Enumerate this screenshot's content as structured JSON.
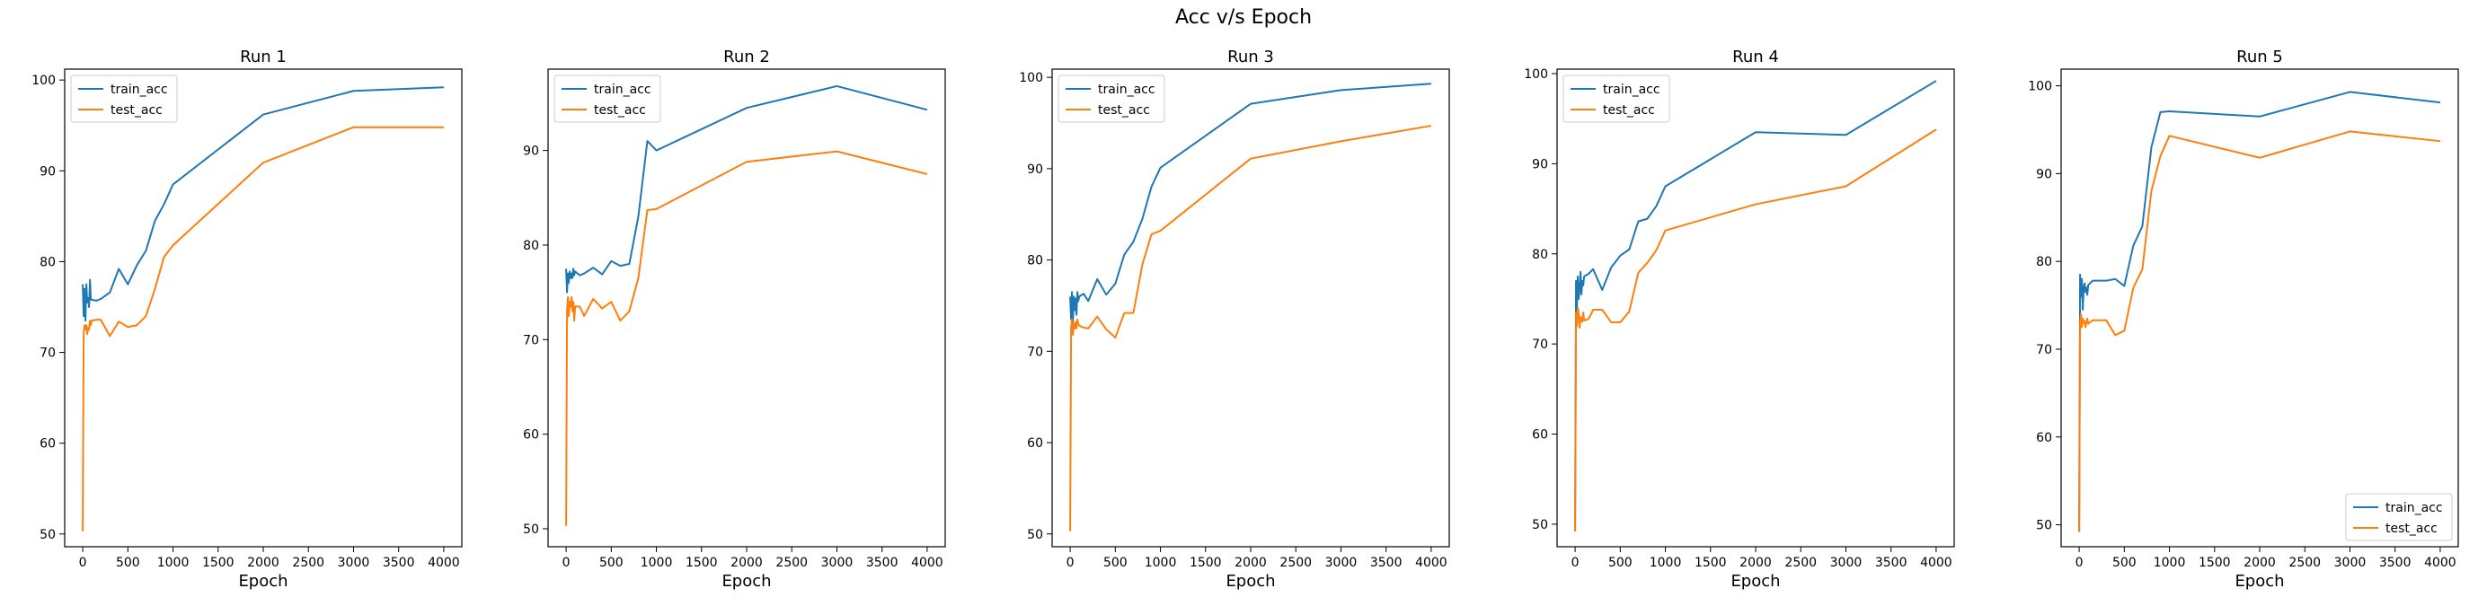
{
  "figure_title": "Acc v/s Epoch",
  "colors": {
    "train": "#1f77b4",
    "test": "#ff7f0e"
  },
  "chart_data": [
    {
      "type": "line",
      "title": "Run 1",
      "xlabel": "Epoch",
      "ylabel": "",
      "xlim": [
        -200,
        4200
      ],
      "ylim": [
        48.6,
        101.2
      ],
      "xticks": [
        0,
        500,
        1000,
        1500,
        2000,
        2500,
        3000,
        3500,
        4000
      ],
      "yticks": [
        50,
        60,
        70,
        80,
        90,
        100
      ],
      "legend": "upper-left",
      "series": [
        {
          "name": "train_acc",
          "color": "#1f77b4",
          "x": [
            0,
            10,
            20,
            30,
            40,
            50,
            60,
            70,
            80,
            90,
            100,
            150,
            200,
            300,
            400,
            500,
            600,
            700,
            800,
            900,
            1000,
            2000,
            3000,
            4000
          ],
          "y": [
            77.5,
            74.0,
            77.0,
            73.5,
            77.5,
            75.5,
            76.0,
            75.0,
            78.0,
            75.8,
            75.8,
            75.7,
            75.9,
            76.6,
            79.2,
            77.5,
            79.6,
            81.2,
            84.5,
            86.3,
            88.5,
            96.2,
            98.8,
            99.2
          ]
        },
        {
          "name": "test_acc",
          "color": "#ff7f0e",
          "x": [
            0,
            10,
            20,
            30,
            40,
            50,
            60,
            70,
            80,
            90,
            100,
            150,
            200,
            300,
            400,
            500,
            600,
            700,
            800,
            900,
            1000,
            2000,
            3000,
            4000
          ],
          "y": [
            50.3,
            72.0,
            73.0,
            72.5,
            73.0,
            72.0,
            72.7,
            72.5,
            73.5,
            73.0,
            73.5,
            73.6,
            73.6,
            71.8,
            73.4,
            72.8,
            73.0,
            74.0,
            77.0,
            80.5,
            81.8,
            90.9,
            94.8,
            94.8
          ]
        }
      ]
    },
    {
      "type": "line",
      "title": "Run 2",
      "xlabel": "Epoch",
      "ylabel": "",
      "xlim": [
        -200,
        4200
      ],
      "ylim": [
        48.1,
        98.6
      ],
      "xticks": [
        0,
        500,
        1000,
        1500,
        2000,
        2500,
        3000,
        3500,
        4000
      ],
      "yticks": [
        50,
        60,
        70,
        80,
        90
      ],
      "legend": "upper-left",
      "series": [
        {
          "name": "train_acc",
          "color": "#1f77b4",
          "x": [
            0,
            10,
            20,
            30,
            40,
            50,
            60,
            70,
            80,
            90,
            100,
            150,
            200,
            300,
            400,
            500,
            600,
            700,
            800,
            900,
            1000,
            2000,
            3000,
            4000
          ],
          "y": [
            77.5,
            75.0,
            77.0,
            76.0,
            77.2,
            76.5,
            77.0,
            76.5,
            77.5,
            76.8,
            77.2,
            76.8,
            77.0,
            77.6,
            76.9,
            78.3,
            77.8,
            78.0,
            83.0,
            91.0,
            90.0,
            94.5,
            96.8,
            94.3
          ]
        },
        {
          "name": "test_acc",
          "color": "#ff7f0e",
          "x": [
            0,
            10,
            20,
            30,
            40,
            50,
            60,
            70,
            80,
            90,
            100,
            150,
            200,
            300,
            400,
            500,
            600,
            700,
            800,
            900,
            1000,
            2000,
            3000,
            4000
          ],
          "y": [
            50.3,
            73.0,
            74.5,
            72.5,
            74.0,
            73.5,
            74.5,
            73.0,
            74.0,
            72.0,
            73.5,
            73.5,
            72.5,
            74.3,
            73.3,
            74.0,
            72.0,
            73.0,
            76.5,
            83.7,
            83.8,
            88.8,
            89.9,
            87.5
          ]
        }
      ]
    },
    {
      "type": "line",
      "title": "Run 3",
      "xlabel": "Epoch",
      "ylabel": "",
      "xlim": [
        -200,
        4200
      ],
      "ylim": [
        48.6,
        100.9
      ],
      "xticks": [
        0,
        500,
        1000,
        1500,
        2000,
        2500,
        3000,
        3500,
        4000
      ],
      "yticks": [
        50,
        60,
        70,
        80,
        90,
        100
      ],
      "legend": "upper-left",
      "series": [
        {
          "name": "train_acc",
          "color": "#1f77b4",
          "x": [
            0,
            10,
            20,
            30,
            40,
            50,
            60,
            70,
            80,
            90,
            100,
            150,
            200,
            300,
            400,
            500,
            600,
            700,
            800,
            900,
            1000,
            2000,
            3000,
            4000
          ],
          "y": [
            76.0,
            73.5,
            76.5,
            73.0,
            76.0,
            74.5,
            75.8,
            74.0,
            76.5,
            75.5,
            76.0,
            76.3,
            75.5,
            77.9,
            76.2,
            77.4,
            80.6,
            82.0,
            84.5,
            88.0,
            90.1,
            97.1,
            98.6,
            99.3
          ]
        },
        {
          "name": "test_acc",
          "color": "#ff7f0e",
          "x": [
            0,
            10,
            20,
            30,
            40,
            50,
            60,
            70,
            80,
            90,
            100,
            150,
            200,
            300,
            400,
            500,
            600,
            700,
            800,
            900,
            1000,
            2000,
            3000,
            4000
          ],
          "y": [
            50.3,
            72.5,
            73.5,
            71.8,
            73.0,
            72.5,
            73.2,
            72.5,
            73.5,
            73.0,
            72.8,
            72.6,
            72.5,
            73.8,
            72.4,
            71.5,
            74.2,
            74.2,
            79.5,
            82.8,
            83.2,
            91.1,
            93.0,
            94.7
          ]
        }
      ]
    },
    {
      "type": "line",
      "title": "Run 4",
      "xlabel": "Epoch",
      "ylabel": "",
      "xlim": [
        -200,
        4200
      ],
      "ylim": [
        47.5,
        100.5
      ],
      "xticks": [
        0,
        500,
        1000,
        1500,
        2000,
        2500,
        3000,
        3500,
        4000
      ],
      "yticks": [
        50,
        60,
        70,
        80,
        90,
        100
      ],
      "legend": "upper-left",
      "series": [
        {
          "name": "train_acc",
          "color": "#1f77b4",
          "x": [
            0,
            10,
            20,
            30,
            40,
            50,
            60,
            70,
            80,
            90,
            100,
            150,
            200,
            300,
            400,
            500,
            600,
            700,
            800,
            900,
            1000,
            2000,
            3000,
            4000
          ],
          "y": [
            49.2,
            77.0,
            74.0,
            77.5,
            75.0,
            76.0,
            78.0,
            75.5,
            77.0,
            76.5,
            77.5,
            77.8,
            78.3,
            76.0,
            78.5,
            79.8,
            80.5,
            83.6,
            83.9,
            85.3,
            87.5,
            93.5,
            93.2,
            99.2
          ]
        },
        {
          "name": "test_acc",
          "color": "#ff7f0e",
          "x": [
            0,
            10,
            20,
            30,
            40,
            50,
            60,
            70,
            80,
            90,
            100,
            150,
            200,
            300,
            400,
            500,
            600,
            700,
            800,
            900,
            1000,
            2000,
            3000,
            4000
          ],
          "y": [
            49.2,
            73.5,
            72.0,
            74.0,
            73.5,
            71.8,
            73.0,
            72.5,
            72.5,
            73.5,
            72.6,
            72.8,
            73.8,
            73.8,
            72.4,
            72.4,
            73.6,
            77.9,
            79.0,
            80.4,
            82.6,
            85.5,
            87.5,
            93.8
          ]
        }
      ]
    },
    {
      "type": "line",
      "title": "Run 5",
      "xlabel": "Epoch",
      "ylabel": "",
      "xlim": [
        -200,
        4200
      ],
      "ylim": [
        47.5,
        101.9
      ],
      "xticks": [
        0,
        500,
        1000,
        1500,
        2000,
        2500,
        3000,
        3500,
        4000
      ],
      "yticks": [
        50,
        60,
        70,
        80,
        90,
        100
      ],
      "legend": "lower-right",
      "series": [
        {
          "name": "train_acc",
          "color": "#1f77b4",
          "x": [
            0,
            10,
            20,
            30,
            40,
            50,
            60,
            70,
            80,
            90,
            100,
            150,
            200,
            300,
            400,
            500,
            600,
            700,
            800,
            900,
            1000,
            2000,
            3000,
            4000
          ],
          "y": [
            49.2,
            78.5,
            76.0,
            78.0,
            74.5,
            77.0,
            77.5,
            76.5,
            77.0,
            76.2,
            77.3,
            77.8,
            77.8,
            77.8,
            78.0,
            77.2,
            81.8,
            84.0,
            93.0,
            97.0,
            97.1,
            96.5,
            99.3,
            98.1
          ]
        },
        {
          "name": "test_acc",
          "color": "#ff7f0e",
          "x": [
            0,
            10,
            20,
            30,
            40,
            50,
            60,
            70,
            80,
            90,
            100,
            150,
            200,
            300,
            400,
            500,
            600,
            700,
            800,
            900,
            1000,
            2000,
            3000,
            4000
          ],
          "y": [
            49.2,
            73.0,
            74.0,
            72.5,
            73.5,
            73.0,
            73.2,
            72.5,
            73.0,
            73.5,
            72.9,
            73.3,
            73.3,
            73.3,
            71.6,
            72.1,
            77.0,
            79.1,
            88.0,
            92.0,
            94.3,
            91.8,
            94.8,
            93.7
          ]
        }
      ]
    }
  ]
}
